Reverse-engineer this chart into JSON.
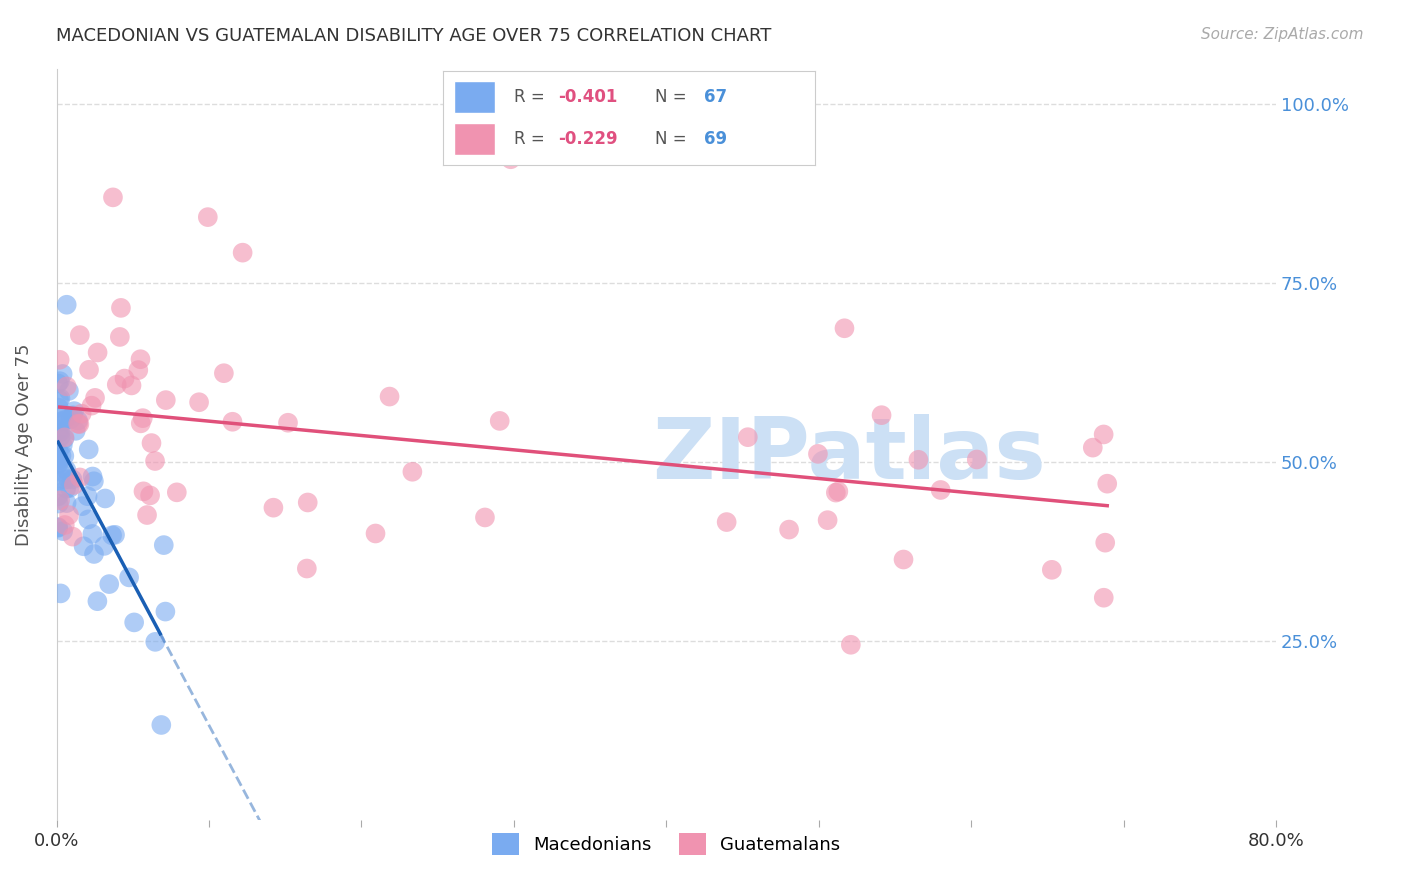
{
  "title": "MACEDONIAN VS GUATEMALAN DISABILITY AGE OVER 75 CORRELATION CHART",
  "source": "Source: ZipAtlas.com",
  "ylabel": "Disability Age Over 75",
  "xlim": [
    0.0,
    0.8
  ],
  "ylim": [
    0.0,
    1.05
  ],
  "ytick_values": [
    0.0,
    0.25,
    0.5,
    0.75,
    1.0
  ],
  "ytick_labels": [
    "",
    "25.0%",
    "50.0%",
    "75.0%",
    "100.0%"
  ],
  "xtick_values": [
    0.0,
    0.1,
    0.2,
    0.3,
    0.4,
    0.5,
    0.6,
    0.7,
    0.8
  ],
  "xtick_labels": [
    "0.0%",
    "",
    "",
    "",
    "",
    "",
    "",
    "",
    "80.0%"
  ],
  "legend_R1": "-0.401",
  "legend_N1": "67",
  "legend_R2": "-0.229",
  "legend_N2": "69",
  "legend_label1": "Macedonians",
  "legend_label2": "Guatemalans",
  "color_macedonian": "#7aabf0",
  "color_guatemalan": "#f093b0",
  "color_trendline_mac": "#1a5fb4",
  "color_trendline_gua": "#e0507a",
  "color_axis_right": "#4a90d9",
  "background_color": "#ffffff",
  "grid_color": "#dddddd",
  "watermark_text": "ZIPatlas",
  "watermark_color": "#cce0f5",
  "title_color": "#333333",
  "source_color": "#aaaaaa",
  "ylabel_color": "#555555"
}
